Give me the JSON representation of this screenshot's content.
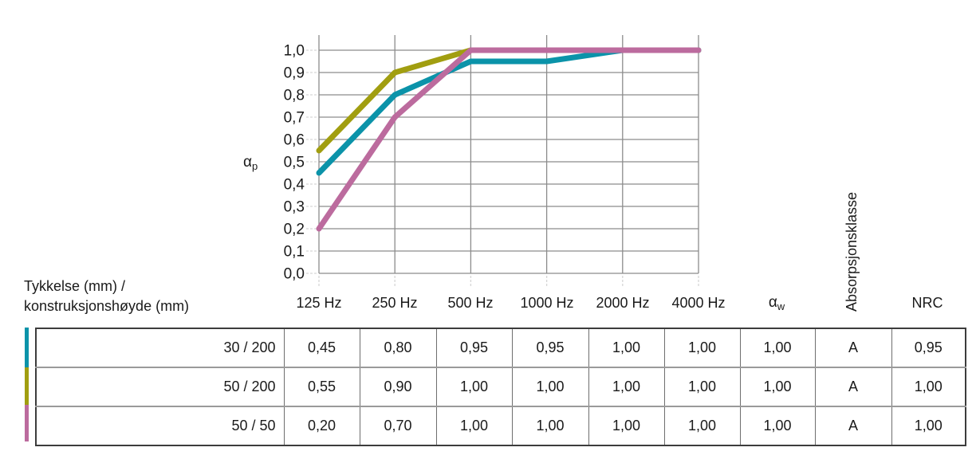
{
  "chart_data": {
    "type": "line",
    "categories": [
      "125 Hz",
      "250 Hz",
      "500 Hz",
      "1000 Hz",
      "2000 Hz",
      "4000 Hz"
    ],
    "series": [
      {
        "name": "30 / 200",
        "color": "#0B93A9",
        "values": [
          0.45,
          0.8,
          0.95,
          0.95,
          1.0,
          1.0
        ]
      },
      {
        "name": "50 / 200",
        "color": "#A19E10",
        "values": [
          0.55,
          0.9,
          1.0,
          1.0,
          1.0,
          1.0
        ]
      },
      {
        "name": "50 / 50",
        "color": "#BC6B9E",
        "values": [
          0.2,
          0.7,
          1.0,
          1.0,
          1.0,
          1.0
        ]
      }
    ],
    "ylabel_symbol": "α",
    "ylabel_sub": "p",
    "ylim": [
      0,
      1.0
    ],
    "ytick_labels": [
      "0,0",
      "0,1",
      "0,2",
      "0,3",
      "0,4",
      "0,5",
      "0,6",
      "0,7",
      "0,8",
      "0,9",
      "1,0"
    ],
    "grid": true,
    "legend_position": "table-row-markers",
    "gridline_color": "#8c8c8c",
    "tick_dash_color": "#d6d6d6",
    "line_width": 7
  },
  "table": {
    "corner_label_line1": "Tykkelse (mm) /",
    "corner_label_line2": "konstruksjonshøyde (mm)",
    "alpha_w_symbol": "α",
    "alpha_w_sub": "w",
    "absorption_class_header": "Absorpsjonsklasse",
    "nrc_header": "NRC",
    "rows": [
      {
        "label": "30 / 200",
        "marker_color": "#0B93A9",
        "values": [
          "0,45",
          "0,80",
          "0,95",
          "0,95",
          "1,00",
          "1,00"
        ],
        "alpha_w": "1,00",
        "absorption_class": "A",
        "nrc": "0,95"
      },
      {
        "label": "50 / 200",
        "marker_color": "#A19E10",
        "values": [
          "0,55",
          "0,90",
          "1,00",
          "1,00",
          "1,00",
          "1,00"
        ],
        "alpha_w": "1,00",
        "absorption_class": "A",
        "nrc": "1,00"
      },
      {
        "label": "50 / 50",
        "marker_color": "#BC6B9E",
        "values": [
          "0,20",
          "0,70",
          "1,00",
          "1,00",
          "1,00",
          "1,00"
        ],
        "alpha_w": "1,00",
        "absorption_class": "A",
        "nrc": "1,00"
      }
    ]
  },
  "colors": {
    "text": "#1a1a1a",
    "table_border_outer": "#3c3c3c",
    "table_border_inner": "#9a9a9a"
  }
}
